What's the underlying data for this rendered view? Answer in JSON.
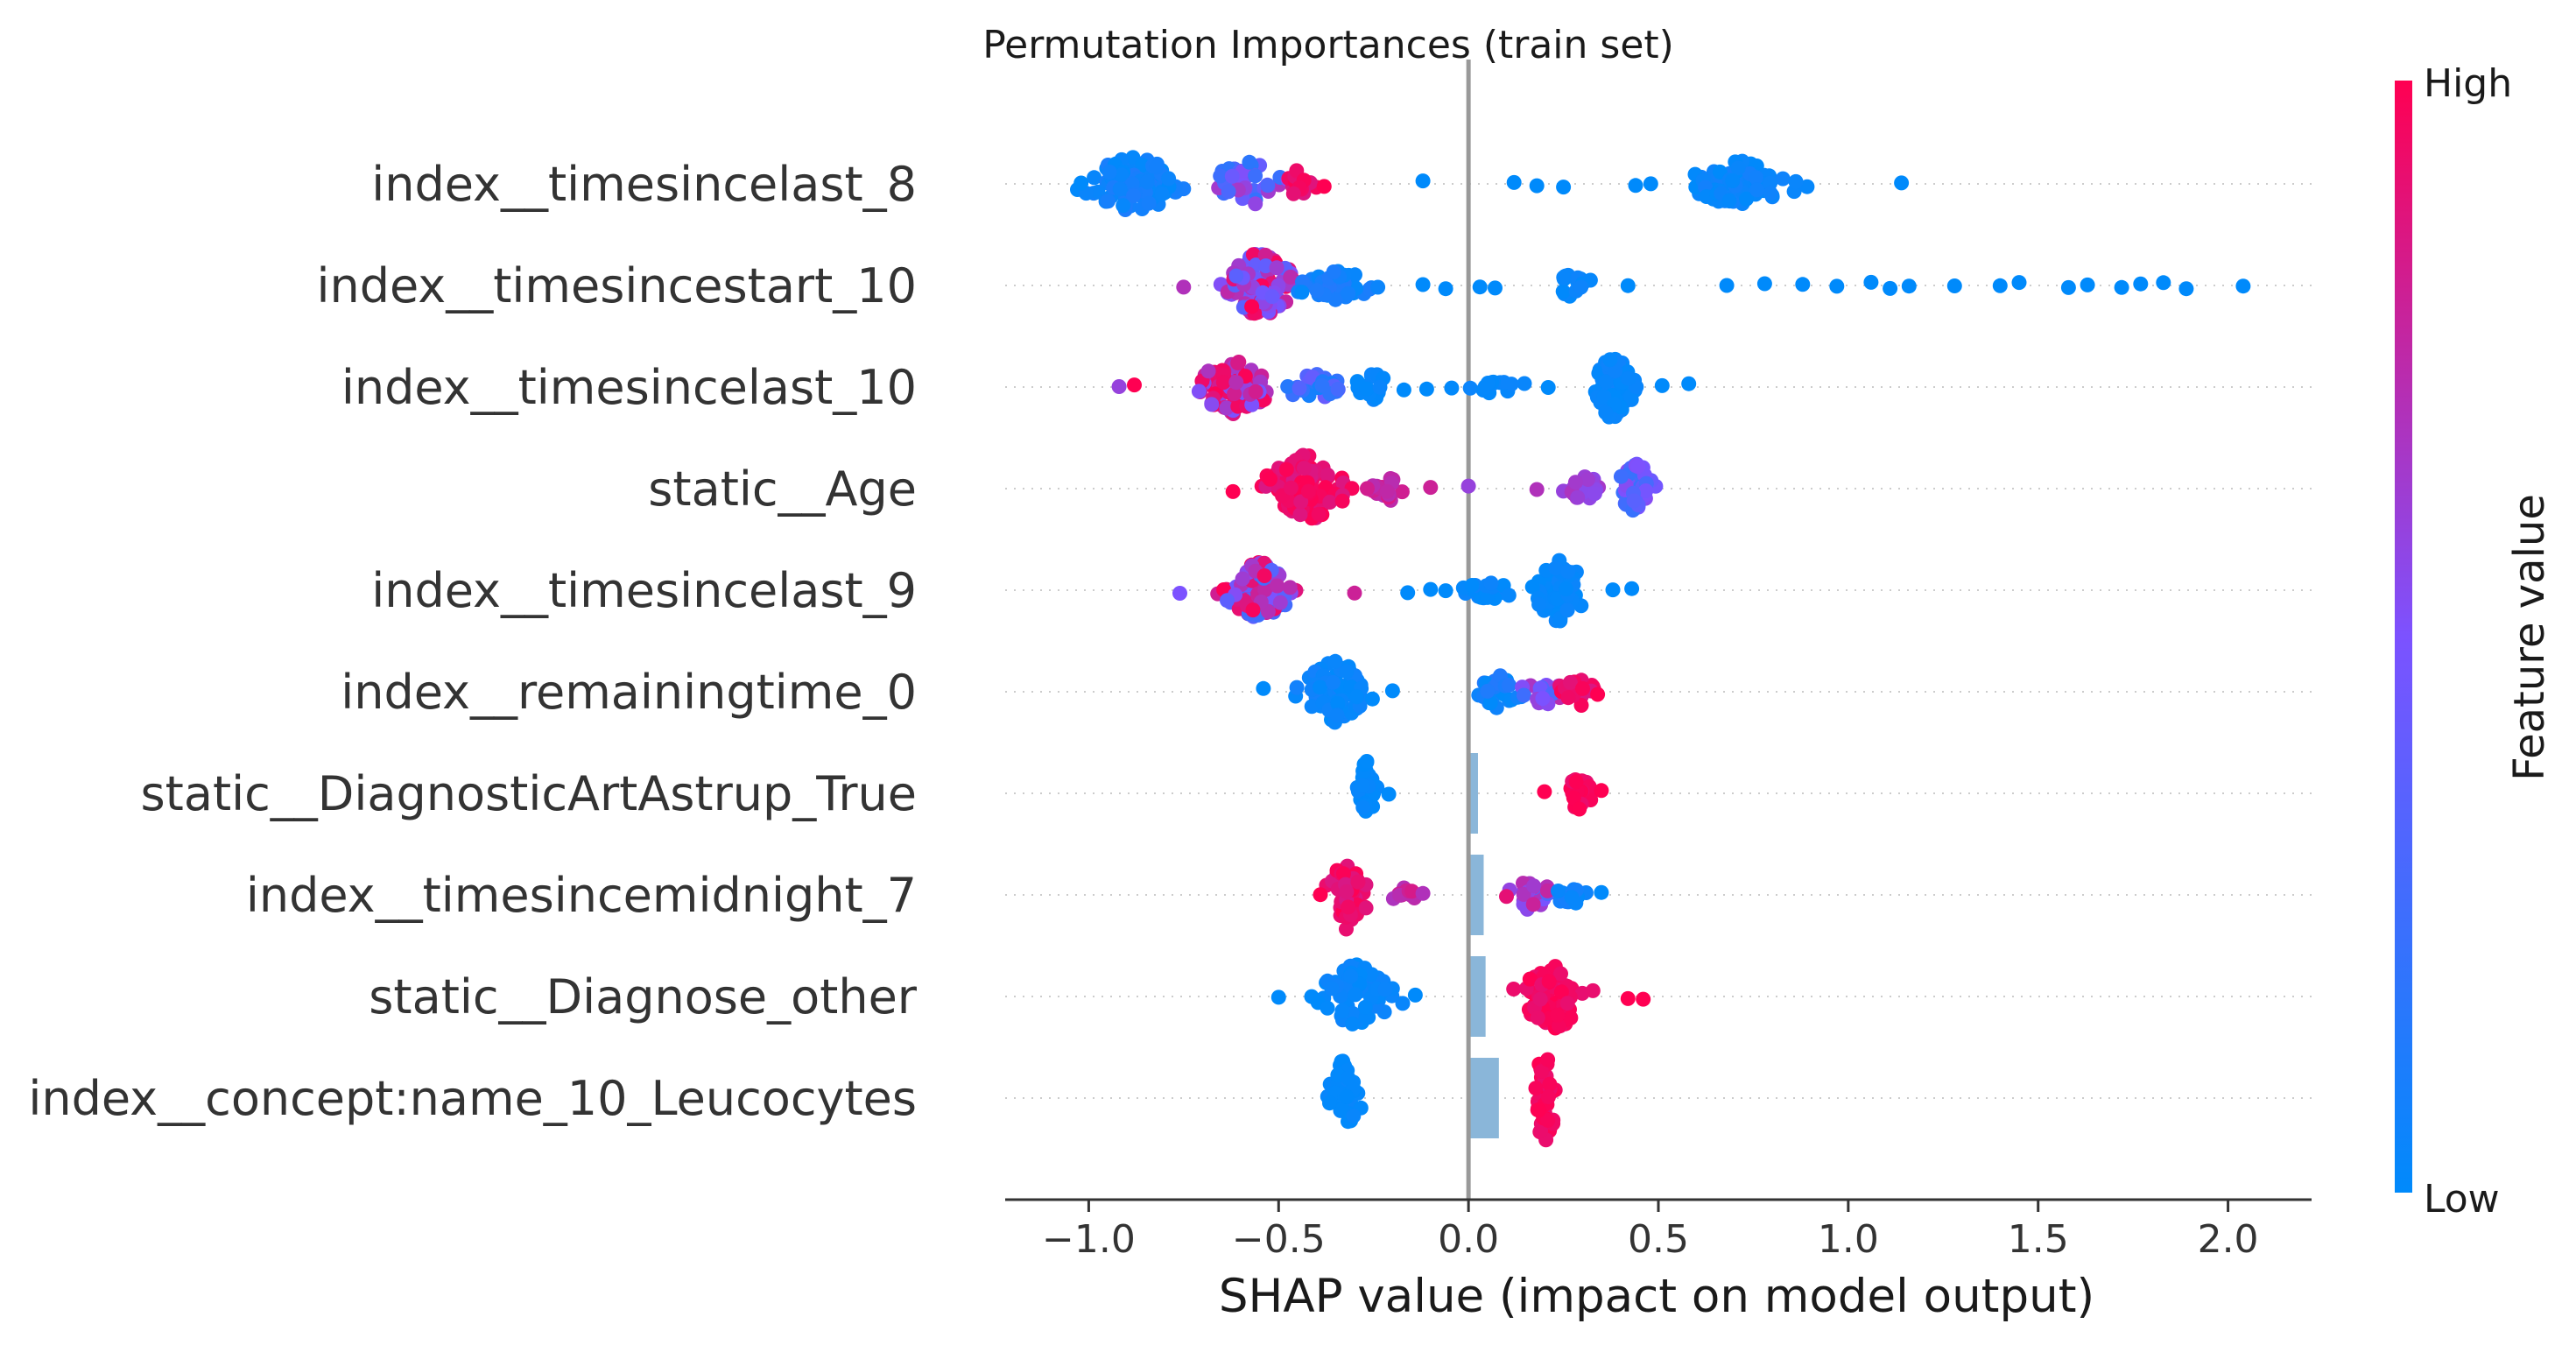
{
  "chart_data": {
    "type": "scatter",
    "subtype": "shap-beeswarm",
    "title": "Permutation Importances (train set)",
    "xlabel": "SHAP value (impact on model output)",
    "xlim": [
      -1.22,
      2.22
    ],
    "xticks": [
      {
        "value": -1.0,
        "label": "−1.0"
      },
      {
        "value": -0.5,
        "label": "−0.5"
      },
      {
        "value": 0.0,
        "label": "0.0"
      },
      {
        "value": 0.5,
        "label": "0.5"
      },
      {
        "value": 1.0,
        "label": "1.0"
      },
      {
        "value": 1.5,
        "label": "1.5"
      },
      {
        "value": 2.0,
        "label": "2.0"
      }
    ],
    "grid": false,
    "colorbar": {
      "title": "Feature value",
      "high_label": "High",
      "low_label": "Low",
      "low_color": "#008afb",
      "mid_color": "#7c52ff",
      "high_color": "#ff0052"
    },
    "colors": {
      "zero_line": "#999999",
      "bar": "#8ab6d9"
    },
    "features": [
      {
        "name": "index__timesincelast_8",
        "bar": 0.0,
        "clusters": [
          {
            "center": -0.88,
            "spread": 0.13,
            "n": 110,
            "cmin": 0.0,
            "cmax": 0.12,
            "width": 0.34
          },
          {
            "center": -0.58,
            "spread": 0.1,
            "n": 40,
            "cmin": 0.15,
            "cmax": 0.7,
            "width": 0.26
          },
          {
            "center": -0.45,
            "spread": 0.04,
            "n": 16,
            "cmin": 0.85,
            "cmax": 1.0,
            "width": 0.16
          }
        ],
        "singles": [
          [
            -1.02,
            0.0
          ],
          [
            -0.38,
            1.0
          ],
          [
            -0.12,
            0.0
          ],
          [
            0.12,
            0.0
          ],
          [
            0.25,
            0.0
          ],
          [
            0.44,
            0.0
          ],
          [
            1.14,
            0.0
          ],
          [
            0.18,
            0.0
          ],
          [
            0.48,
            0.0
          ]
        ],
        "pos_clusters": [
          {
            "center": 0.72,
            "spread": 0.14,
            "n": 70,
            "cmin": 0.0,
            "cmax": 0.08,
            "width": 0.28
          }
        ]
      },
      {
        "name": "index__timesincestart_10",
        "bar": 0.0,
        "clusters": [
          {
            "center": -0.55,
            "spread": 0.09,
            "n": 90,
            "cmin": 0.35,
            "cmax": 1.0,
            "width": 0.4
          },
          {
            "center": -0.35,
            "spread": 0.1,
            "n": 40,
            "cmin": 0.0,
            "cmax": 0.15,
            "width": 0.18
          },
          {
            "center": 0.27,
            "spread": 0.05,
            "n": 16,
            "cmin": 0.0,
            "cmax": 0.06,
            "width": 0.14
          }
        ],
        "singles": [
          [
            -0.75,
            0.7
          ],
          [
            -0.12,
            0.0
          ],
          [
            -0.06,
            0.0
          ],
          [
            0.03,
            0.0
          ],
          [
            0.07,
            0.0
          ],
          [
            0.42,
            0.0
          ],
          [
            0.68,
            0.0
          ],
          [
            0.78,
            0.0
          ],
          [
            0.88,
            0.0
          ],
          [
            0.97,
            0.0
          ],
          [
            1.06,
            0.0
          ],
          [
            1.11,
            0.0
          ],
          [
            1.16,
            0.0
          ],
          [
            1.28,
            0.0
          ],
          [
            1.4,
            0.0
          ],
          [
            1.45,
            0.0
          ],
          [
            1.58,
            0.0
          ],
          [
            1.63,
            0.0
          ],
          [
            1.72,
            0.0
          ],
          [
            1.77,
            0.0
          ],
          [
            1.83,
            0.0
          ],
          [
            1.89,
            0.0
          ],
          [
            2.04,
            0.0
          ]
        ]
      },
      {
        "name": "index__timesincelast_10",
        "bar": 0.0,
        "clusters": [
          {
            "center": -0.62,
            "spread": 0.1,
            "n": 85,
            "cmin": 0.45,
            "cmax": 1.0,
            "width": 0.32
          },
          {
            "center": -0.4,
            "spread": 0.08,
            "n": 30,
            "cmin": 0.05,
            "cmax": 0.45,
            "width": 0.18
          },
          {
            "center": -0.25,
            "spread": 0.05,
            "n": 14,
            "cmin": 0.0,
            "cmax": 0.05,
            "width": 0.16
          },
          {
            "center": 0.06,
            "spread": 0.09,
            "n": 14,
            "cmin": 0.0,
            "cmax": 0.05,
            "width": 0.08
          },
          {
            "center": 0.38,
            "spread": 0.05,
            "n": 70,
            "cmin": 0.0,
            "cmax": 0.06,
            "width": 0.4
          }
        ],
        "singles": [
          [
            -0.92,
            0.6
          ],
          [
            -0.88,
            1.0
          ],
          [
            -0.17,
            0.0
          ],
          [
            -0.11,
            0.0
          ],
          [
            0.21,
            0.0
          ],
          [
            0.58,
            0.0
          ],
          [
            0.51,
            0.0
          ]
        ]
      },
      {
        "name": "static__Age",
        "bar": 0.0,
        "clusters": [
          {
            "center": -0.43,
            "spread": 0.1,
            "n": 95,
            "cmin": 0.85,
            "cmax": 1.0,
            "width": 0.42
          },
          {
            "center": -0.22,
            "spread": 0.04,
            "n": 22,
            "cmin": 0.7,
            "cmax": 0.85,
            "width": 0.18
          },
          {
            "center": 0.31,
            "spread": 0.06,
            "n": 24,
            "cmin": 0.55,
            "cmax": 0.7,
            "width": 0.14
          },
          {
            "center": 0.44,
            "spread": 0.05,
            "n": 45,
            "cmin": 0.2,
            "cmax": 0.55,
            "width": 0.32
          }
        ],
        "singles": [
          [
            -0.62,
            1.0
          ],
          [
            -0.1,
            0.8
          ],
          [
            0.0,
            0.6
          ],
          [
            0.18,
            0.7
          ]
        ]
      },
      {
        "name": "index__timesincelast_9",
        "bar": 0.0,
        "clusters": [
          {
            "center": -0.55,
            "spread": 0.09,
            "n": 85,
            "cmin": 0.25,
            "cmax": 1.0,
            "width": 0.34
          },
          {
            "center": 0.05,
            "spread": 0.06,
            "n": 20,
            "cmin": 0.0,
            "cmax": 0.06,
            "width": 0.12
          },
          {
            "center": 0.24,
            "spread": 0.07,
            "n": 60,
            "cmin": 0.0,
            "cmax": 0.05,
            "width": 0.38
          }
        ],
        "singles": [
          [
            -0.76,
            0.5
          ],
          [
            -0.3,
            0.8
          ],
          [
            -0.16,
            0.0
          ],
          [
            -0.1,
            0.0
          ],
          [
            -0.06,
            0.0
          ],
          [
            0.38,
            0.0
          ],
          [
            0.43,
            0.0
          ]
        ]
      },
      {
        "name": "index__remainingtime_0",
        "bar": 0.0,
        "clusters": [
          {
            "center": -0.35,
            "spread": 0.08,
            "n": 80,
            "cmin": 0.0,
            "cmax": 0.08,
            "width": 0.4
          },
          {
            "center": 0.08,
            "spread": 0.07,
            "n": 28,
            "cmin": 0.0,
            "cmax": 0.15,
            "width": 0.2
          },
          {
            "center": 0.2,
            "spread": 0.05,
            "n": 22,
            "cmin": 0.2,
            "cmax": 0.75,
            "width": 0.16
          },
          {
            "center": 0.3,
            "spread": 0.05,
            "n": 22,
            "cmin": 0.85,
            "cmax": 1.0,
            "width": 0.18
          }
        ],
        "singles": [
          [
            -0.54,
            0.0
          ],
          [
            -0.2,
            0.0
          ],
          [
            0.34,
            1.0
          ]
        ]
      },
      {
        "name": "static__DiagnosticArtAstrup_True",
        "bar": 0.025,
        "clusters": [
          {
            "center": -0.27,
            "spread": 0.02,
            "n": 40,
            "cmin": 0.0,
            "cmax": 0.04,
            "width": 0.4
          },
          {
            "center": 0.29,
            "spread": 0.04,
            "n": 30,
            "cmin": 0.9,
            "cmax": 1.0,
            "width": 0.2
          }
        ],
        "singles": [
          [
            -0.21,
            0.0
          ],
          [
            0.2,
            1.0
          ],
          [
            0.35,
            1.0
          ]
        ]
      },
      {
        "name": "index__timesincemidnight_7",
        "bar": 0.04,
        "clusters": [
          {
            "center": -0.32,
            "spread": 0.05,
            "n": 45,
            "cmin": 0.85,
            "cmax": 1.0,
            "width": 0.42
          },
          {
            "center": -0.17,
            "spread": 0.05,
            "n": 14,
            "cmin": 0.65,
            "cmax": 0.85,
            "width": 0.1
          },
          {
            "center": 0.16,
            "spread": 0.06,
            "n": 30,
            "cmin": 0.3,
            "cmax": 0.8,
            "width": 0.18
          },
          {
            "center": 0.27,
            "spread": 0.04,
            "n": 16,
            "cmin": 0.0,
            "cmax": 0.1,
            "width": 0.12
          }
        ],
        "singles": [
          [
            -0.39,
            1.0
          ],
          [
            -0.12,
            0.7
          ],
          [
            0.1,
            0.9
          ],
          [
            0.35,
            0.0
          ]
        ]
      },
      {
        "name": "static__Diagnose_other",
        "bar": 0.045,
        "clusters": [
          {
            "center": -0.3,
            "spread": 0.09,
            "n": 65,
            "cmin": 0.0,
            "cmax": 0.06,
            "width": 0.4
          },
          {
            "center": 0.23,
            "spread": 0.09,
            "n": 65,
            "cmin": 0.9,
            "cmax": 1.0,
            "width": 0.38
          }
        ],
        "singles": [
          [
            -0.5,
            0.0
          ],
          [
            -0.14,
            0.0
          ],
          [
            0.46,
            1.0
          ],
          [
            0.42,
            1.0
          ]
        ]
      },
      {
        "name": "index__concept:name_10_Leucocytes",
        "bar": 0.08,
        "clusters": [
          {
            "center": -0.33,
            "spread": 0.04,
            "n": 40,
            "cmin": 0.0,
            "cmax": 0.04,
            "width": 0.45
          },
          {
            "center": 0.2,
            "spread": 0.03,
            "n": 40,
            "cmin": 0.92,
            "cmax": 1.0,
            "width": 0.55
          }
        ],
        "singles": []
      }
    ]
  }
}
